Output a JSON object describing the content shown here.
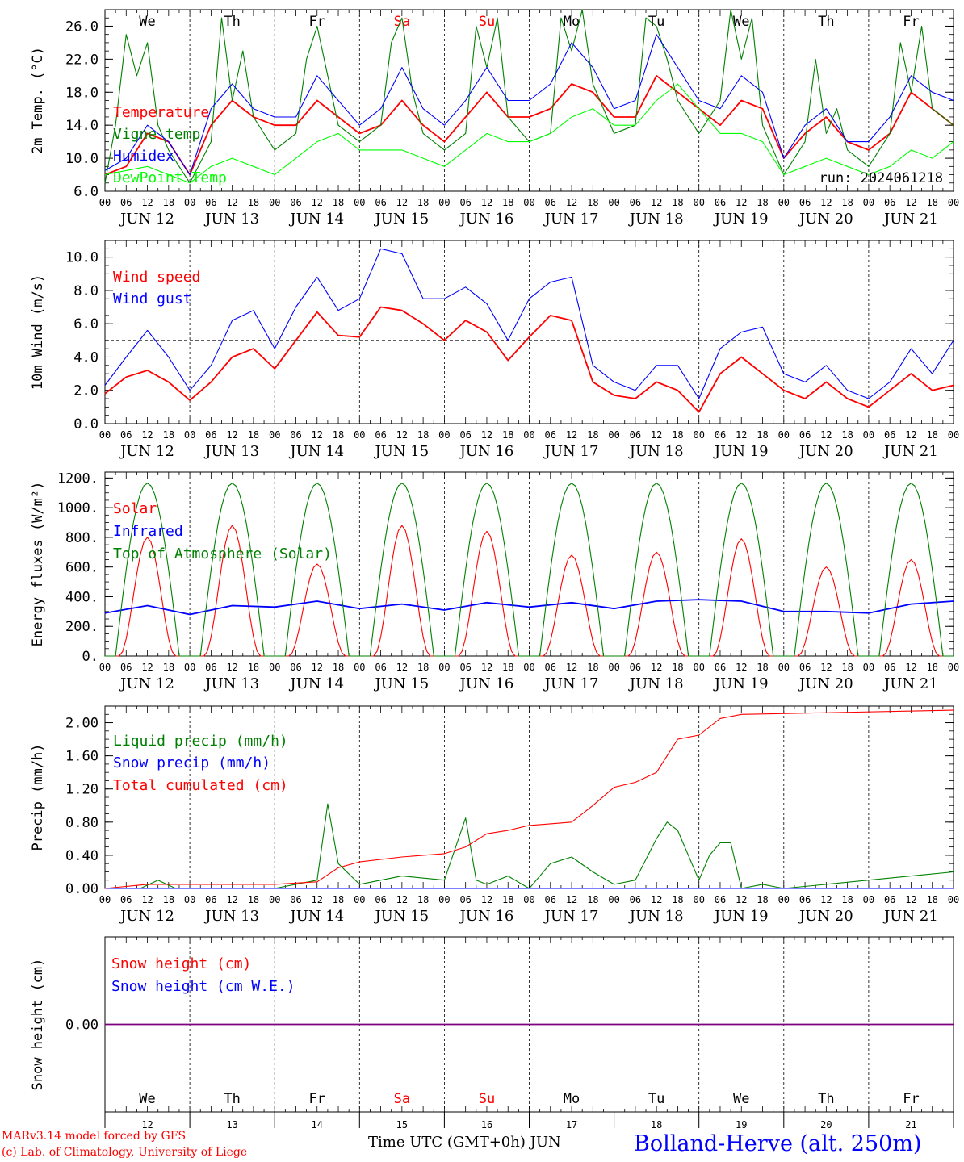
{
  "run_label": "run: 2024061218",
  "footer": {
    "model_line1": "MARv3.14 model forced by GFS",
    "model_line2": "(c) Lab. of Climatology, University of Liege",
    "xlabel": "Time UTC (GMT+0h)",
    "month": "JUN",
    "station": "Bolland-Herve (alt. 250m)"
  },
  "day_names": [
    "We",
    "Th",
    "Fr",
    "Sa",
    "Su",
    "Mo",
    "Tu",
    "We",
    "Th",
    "Fr"
  ],
  "weekend_days": [
    "Sa",
    "Su"
  ],
  "date_labels": [
    "JUN 12",
    "JUN 13",
    "JUN 14",
    "JUN 15",
    "JUN 16",
    "JUN 17",
    "JUN 18",
    "JUN 19",
    "JUN 20",
    "JUN 21"
  ],
  "day_numbers": [
    "12",
    "13",
    "14",
    "15",
    "16",
    "17",
    "18",
    "19",
    "20",
    "21"
  ],
  "hour_ticks": [
    "00",
    "06",
    "12",
    "18"
  ],
  "final_tick": "00",
  "colors": {
    "red": "#ff0000",
    "dark_green": "#008000",
    "blue": "#0000ff",
    "light_green": "#00ff00",
    "purple": "#7f007f"
  },
  "chart_data": [
    {
      "type": "line",
      "ylabel": "2m Temp. (°C)",
      "yticks": [
        "6.0",
        "10.0",
        "14.0",
        "18.0",
        "22.0",
        "26.0"
      ],
      "ylim": [
        6,
        28
      ],
      "x_unit": "hours since JUN 12 00 UTC",
      "series": [
        {
          "name": "Temperature",
          "color": "#ff0000",
          "x": [
            0,
            6,
            12,
            18,
            24,
            30,
            36,
            42,
            48,
            54,
            60,
            66,
            72,
            78,
            84,
            90,
            96,
            102,
            108,
            114,
            120,
            126,
            132,
            138,
            144,
            150,
            156,
            162,
            168,
            174,
            180,
            186,
            192,
            198,
            204,
            210,
            216,
            222,
            228,
            234,
            240
          ],
          "y": [
            8,
            9,
            13,
            12,
            8,
            14,
            17,
            15,
            14,
            14,
            17,
            15,
            13,
            14,
            17,
            14,
            12,
            15,
            18,
            15,
            15,
            16,
            19,
            18,
            15,
            15,
            20,
            18,
            16,
            14,
            17,
            16,
            10,
            13,
            15,
            12,
            11,
            13,
            18,
            16,
            14
          ]
        },
        {
          "name": "Vigne temp",
          "color": "#008000",
          "x": [
            0,
            3,
            6,
            9,
            12,
            15,
            18,
            24,
            30,
            33,
            36,
            39,
            42,
            48,
            54,
            57,
            60,
            63,
            66,
            72,
            78,
            81,
            84,
            87,
            90,
            96,
            102,
            105,
            108,
            111,
            114,
            120,
            126,
            129,
            132,
            135,
            138,
            144,
            150,
            153,
            156,
            159,
            162,
            168,
            174,
            177,
            180,
            183,
            186,
            192,
            198,
            201,
            204,
            207,
            210,
            216,
            222,
            225,
            228,
            231,
            234,
            240
          ],
          "y": [
            7,
            14,
            25,
            20,
            24,
            14,
            11,
            7,
            12,
            27,
            17,
            23,
            15,
            11,
            13,
            22,
            26,
            20,
            14,
            12,
            14,
            24,
            27,
            18,
            13,
            11,
            13,
            26,
            21,
            27,
            15,
            12,
            13,
            27,
            23,
            28,
            19,
            13,
            14,
            27,
            26,
            22,
            17,
            13,
            17,
            28,
            22,
            27,
            14,
            8,
            12,
            22,
            13,
            16,
            11,
            9,
            13,
            24,
            18,
            26,
            16,
            14
          ]
        },
        {
          "name": "Humidex",
          "color": "#0000ff",
          "x": [
            0,
            6,
            12,
            18,
            24,
            30,
            36,
            42,
            48,
            54,
            60,
            66,
            72,
            78,
            84,
            90,
            96,
            102,
            108,
            114,
            120,
            126,
            132,
            138,
            144,
            150,
            156,
            162,
            168,
            174,
            180,
            186,
            192,
            198,
            204,
            210,
            216,
            222,
            228,
            234,
            240
          ],
          "y": [
            8.5,
            10,
            14,
            12,
            8,
            16,
            19,
            16,
            15,
            15,
            20,
            17,
            14,
            16,
            21,
            16,
            14,
            17,
            21,
            17,
            17,
            19,
            24,
            21,
            16,
            17,
            25,
            21,
            17,
            16,
            20,
            18,
            10,
            14,
            16,
            12,
            12,
            15,
            20,
            18,
            17
          ]
        },
        {
          "name": "DewPoint Temp",
          "color": "#00ff00",
          "x": [
            0,
            6,
            12,
            18,
            24,
            30,
            36,
            42,
            48,
            54,
            60,
            66,
            72,
            78,
            84,
            90,
            96,
            102,
            108,
            114,
            120,
            126,
            132,
            138,
            144,
            150,
            156,
            162,
            168,
            174,
            180,
            186,
            192,
            198,
            204,
            210,
            216,
            222,
            228,
            234,
            240
          ],
          "y": [
            8,
            8.5,
            9,
            8,
            7,
            9,
            10,
            9,
            8,
            10,
            12,
            13,
            11,
            11,
            11,
            10,
            9,
            11,
            13,
            12,
            12,
            13,
            15,
            16,
            14,
            14,
            17,
            19,
            16,
            13,
            13,
            12,
            8,
            9,
            10,
            9,
            8,
            9,
            11,
            10,
            12
          ]
        }
      ]
    },
    {
      "type": "line",
      "ylabel": "10m Wind (m/s)",
      "yticks": [
        "0.0",
        "2.0",
        "4.0",
        "6.0",
        "8.0",
        "10.0"
      ],
      "ylim": [
        0,
        11
      ],
      "reference_line": 5,
      "series": [
        {
          "name": "Wind speed",
          "color": "#ff0000",
          "x": [
            0,
            6,
            12,
            18,
            24,
            30,
            36,
            42,
            48,
            54,
            60,
            66,
            72,
            78,
            84,
            90,
            96,
            102,
            108,
            114,
            120,
            126,
            132,
            138,
            144,
            150,
            156,
            162,
            168,
            174,
            180,
            186,
            192,
            198,
            204,
            210,
            216,
            222,
            228,
            234,
            240
          ],
          "y": [
            1.8,
            2.8,
            3.2,
            2.5,
            1.4,
            2.5,
            4,
            4.5,
            3.3,
            5,
            6.7,
            5.3,
            5.2,
            7,
            6.8,
            6,
            5,
            6.2,
            5.5,
            3.8,
            5.2,
            6.5,
            6.2,
            2.5,
            1.7,
            1.5,
            2.5,
            2,
            0.7,
            3,
            4,
            3,
            2,
            1.5,
            2.5,
            1.5,
            1,
            2,
            3,
            2,
            2.3
          ]
        },
        {
          "name": "Wind gust",
          "color": "#0000ff",
          "x": [
            0,
            6,
            12,
            18,
            24,
            30,
            36,
            42,
            48,
            54,
            60,
            66,
            72,
            78,
            84,
            90,
            96,
            102,
            108,
            114,
            120,
            126,
            132,
            138,
            144,
            150,
            156,
            162,
            168,
            174,
            180,
            186,
            192,
            198,
            204,
            210,
            216,
            222,
            228,
            234,
            240
          ],
          "y": [
            2.3,
            4,
            5.6,
            4,
            2,
            3.5,
            6.2,
            6.8,
            4.5,
            7,
            8.8,
            6.8,
            7.5,
            10.5,
            10.2,
            7.5,
            7.5,
            8.2,
            7.2,
            5,
            7.5,
            8.5,
            8.8,
            3.5,
            2.5,
            2,
            3.5,
            3.5,
            1.5,
            4.5,
            5.5,
            5.8,
            3,
            2.5,
            3.5,
            2,
            1.5,
            2.5,
            4.5,
            3,
            5
          ]
        }
      ]
    },
    {
      "type": "line",
      "ylabel": "Energy fluxes (W/m²)",
      "yticks": [
        "0.",
        "200.",
        "400.",
        "600.",
        "800.",
        "1000.",
        "1200."
      ],
      "ylim": [
        0,
        1240
      ],
      "series": [
        {
          "name": "Solar",
          "color": "#ff0000",
          "daily_peaks": [
            800,
            880,
            620,
            880,
            840,
            680,
            700,
            790,
            600,
            650
          ]
        },
        {
          "name": "Infrared",
          "color": "#0000ff",
          "x": [
            0,
            12,
            24,
            36,
            48,
            60,
            72,
            84,
            96,
            108,
            120,
            132,
            144,
            156,
            168,
            180,
            192,
            204,
            216,
            228,
            240
          ],
          "y": [
            290,
            340,
            280,
            340,
            330,
            370,
            320,
            350,
            310,
            360,
            330,
            360,
            320,
            370,
            380,
            370,
            300,
            300,
            290,
            350,
            370
          ]
        },
        {
          "name": "Top of Atmosphere (Solar)",
          "color": "#008000",
          "daily_peak": 1165
        }
      ]
    },
    {
      "type": "line",
      "ylabel": "Precip (mm/h)",
      "yticks": [
        "0.00",
        "0.40",
        "0.80",
        "1.20",
        "1.60",
        "2.00"
      ],
      "ylim": [
        0,
        2.2
      ],
      "series": [
        {
          "name": "Liquid precip (mm/h)",
          "color": "#008000",
          "x": [
            0,
            10,
            15,
            20,
            48,
            60,
            63,
            66,
            72,
            84,
            96,
            102,
            105,
            108,
            114,
            120,
            126,
            132,
            138,
            144,
            150,
            156,
            159,
            162,
            168,
            171,
            174,
            177,
            180,
            186,
            192,
            240
          ],
          "y": [
            0,
            0,
            0.1,
            0,
            0,
            0.1,
            1.02,
            0.3,
            0.05,
            0.15,
            0.1,
            0.85,
            0.1,
            0.05,
            0.15,
            0,
            0.3,
            0.38,
            0.2,
            0.05,
            0.1,
            0.6,
            0.8,
            0.7,
            0.1,
            0.4,
            0.55,
            0.55,
            0,
            0.05,
            0,
            0.2
          ]
        },
        {
          "name": "Snow precip (mm/h)",
          "color": "#0000ff",
          "x": [
            0,
            240
          ],
          "y": [
            0,
            0
          ]
        },
        {
          "name": "Total cumulated (cm)",
          "color": "#ff0000",
          "x": [
            0,
            12,
            48,
            60,
            66,
            72,
            84,
            96,
            102,
            108,
            114,
            120,
            126,
            132,
            138,
            144,
            150,
            156,
            162,
            168,
            174,
            180,
            240
          ],
          "y": [
            0,
            0.05,
            0.05,
            0.08,
            0.25,
            0.32,
            0.38,
            0.42,
            0.5,
            0.66,
            0.7,
            0.76,
            0.78,
            0.8,
            1.0,
            1.22,
            1.28,
            1.4,
            1.8,
            1.85,
            2.05,
            2.1,
            2.15
          ]
        }
      ]
    },
    {
      "type": "line",
      "ylabel": "Snow height (cm)",
      "yticks": [
        "0.00"
      ],
      "series": [
        {
          "name": "Snow height (cm)",
          "color": "#ff0000",
          "x": [
            0,
            240
          ],
          "y": [
            0,
            0
          ]
        },
        {
          "name": "Snow height (cm W.E.)",
          "color": "#0000ff",
          "x": [
            0,
            240
          ],
          "y": [
            0,
            0
          ]
        }
      ]
    }
  ]
}
